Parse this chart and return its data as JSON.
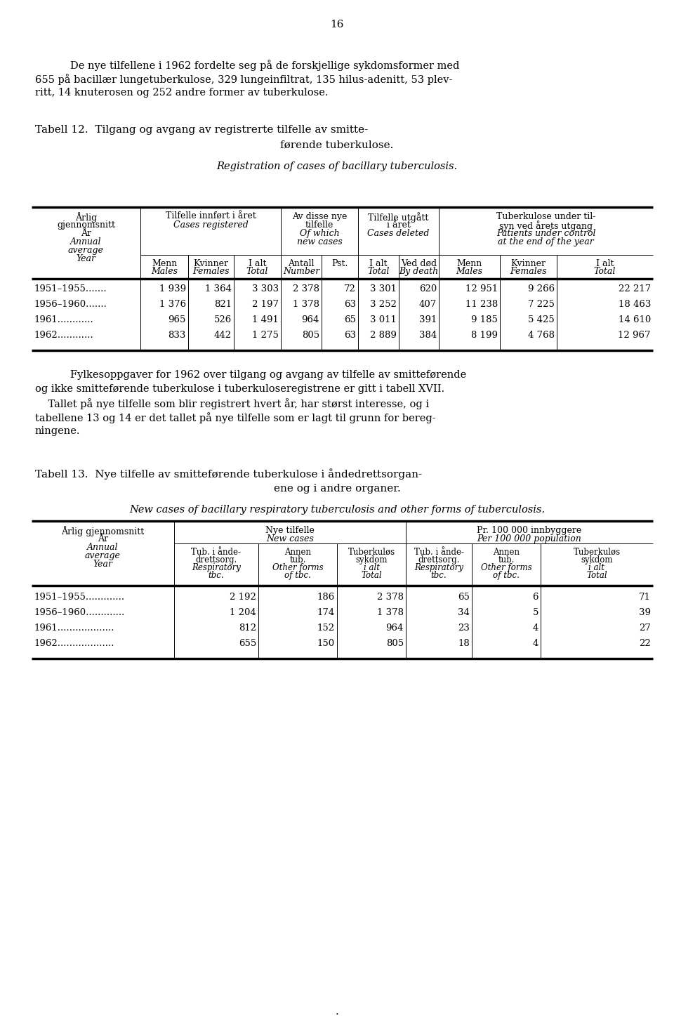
{
  "page_number": "16",
  "intro_text": [
    "De nye tilfellene i 1962 fordelte seg på de forskjellige sykdomsformer med",
    "655 på bacillær lungetuberkulose, 329 lungeinfiltrat, 135 hilus-adenitt, 53 plev-",
    "ritt, 14 knuterosen og 252 andre former av tuberkulose."
  ],
  "table1_title_no1": "Tabell 12.  Tilgang og avgang av registrerte tilfelle av smitte-",
  "table1_title_no2": "førende tuberkulose.",
  "table1_title_en": "Registration of cases of bacillary tuberculosis.",
  "table1_rows": [
    [
      "1951–1955.......",
      "1 939",
      "1 364",
      "3 303",
      "2 378",
      "72",
      "3 301",
      "620",
      "12 951",
      "9 266",
      "22 217"
    ],
    [
      "1956–1960.......",
      "1 376",
      "821",
      "2 197",
      "1 378",
      "63",
      "3 252",
      "407",
      "11 238",
      "7 225",
      "18 463"
    ],
    [
      "1961............",
      "965",
      "526",
      "1 491",
      "964",
      "65",
      "3 011",
      "391",
      "9 185",
      "5 425",
      "14 610"
    ],
    [
      "1962............",
      "833",
      "442",
      "1 275",
      "805",
      "63",
      "2 889",
      "384",
      "8 199",
      "4 768",
      "12 967"
    ]
  ],
  "middle_text": [
    "Fylkesoppgaver for 1962 over tilgang og avgang av tilfelle av smitteførende",
    "og ikke smitteførende tuberkulose i tuberkuloseregistrene er gitt i tabell XVII.",
    "    Tallet på nye tilfelle som blir registrert hvert år, har størst interesse, og i",
    "tabellene 13 og 14 er det tallet på nye tilfelle som er lagt til grunn for bereg-",
    "ningene."
  ],
  "table2_title_no1": "Tabell 13.  Nye tilfelle av smitteførende tuberkulose i åndedrettsorgan-",
  "table2_title_no2": "ene og i andre organer.",
  "table2_title_en": "New cases of bacillary respiratory tuberculosis and other forms of tuberculosis.",
  "table2_rows": [
    [
      "1951–1955.............",
      "2 192",
      "186",
      "2 378",
      "65",
      "6",
      "71"
    ],
    [
      "1956–1960.............",
      "1 204",
      "174",
      "1 378",
      "34",
      "5",
      "39"
    ],
    [
      "1961...................",
      "812",
      "152",
      "964",
      "23",
      "4",
      "27"
    ],
    [
      "1962...................",
      "655",
      "150",
      "805",
      "18",
      "4",
      "22"
    ]
  ]
}
